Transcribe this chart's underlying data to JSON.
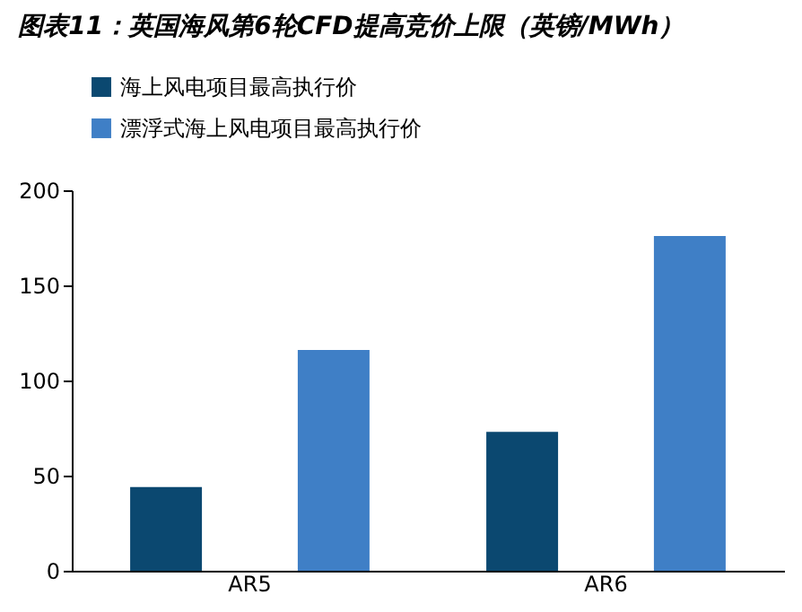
{
  "chart_data": {
    "type": "bar",
    "title": "图表11：英国海风第6轮CFD提高竞价上限（英镑/MWh）",
    "categories": [
      "AR5",
      "AR6"
    ],
    "series": [
      {
        "name": "海上风电项目最高执行价",
        "color": "#0b4870",
        "values": [
          44,
          73
        ]
      },
      {
        "name": "漂浮式海上风电项目最高执行价",
        "color": "#3f7fc6",
        "values": [
          116,
          176
        ]
      }
    ],
    "ylim": [
      0,
      200
    ],
    "yticks": [
      0,
      50,
      100,
      150,
      200
    ],
    "grid": false,
    "legend": "top"
  }
}
